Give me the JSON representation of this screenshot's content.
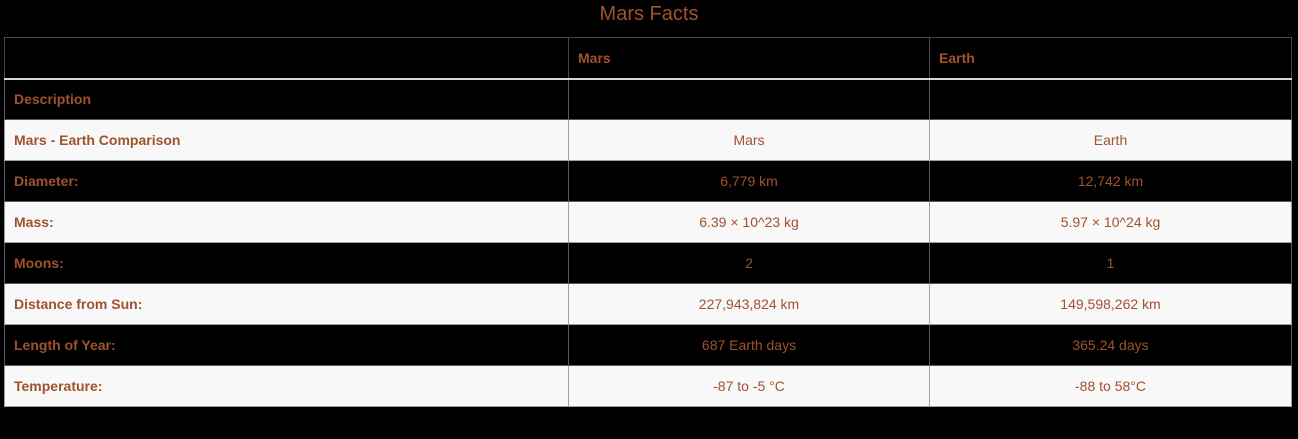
{
  "title": "Mars Facts",
  "table": {
    "headers": [
      "",
      "Mars",
      "Earth"
    ],
    "rows": [
      {
        "label": "Description",
        "mars": "",
        "earth": ""
      },
      {
        "label": "Mars - Earth Comparison",
        "mars": "Mars",
        "earth": "Earth"
      },
      {
        "label": "Diameter:",
        "mars": "6,779 km",
        "earth": "12,742 km"
      },
      {
        "label": "Mass:",
        "mars": "6.39 × 10^23 kg",
        "earth": "5.97 × 10^24 kg"
      },
      {
        "label": "Moons:",
        "mars": "2",
        "earth": "1"
      },
      {
        "label": "Distance from Sun:",
        "mars": "227,943,824 km",
        "earth": "149,598,262 km"
      },
      {
        "label": "Length of Year:",
        "mars": "687 Earth days",
        "earth": "365.24 days"
      },
      {
        "label": "Temperature:",
        "mars": "-87 to -5 °C",
        "earth": "-88 to 58°C"
      }
    ]
  },
  "colors": {
    "text": "#a0522d",
    "dark_row": "#000000",
    "light_row": "#f8f8f8"
  }
}
